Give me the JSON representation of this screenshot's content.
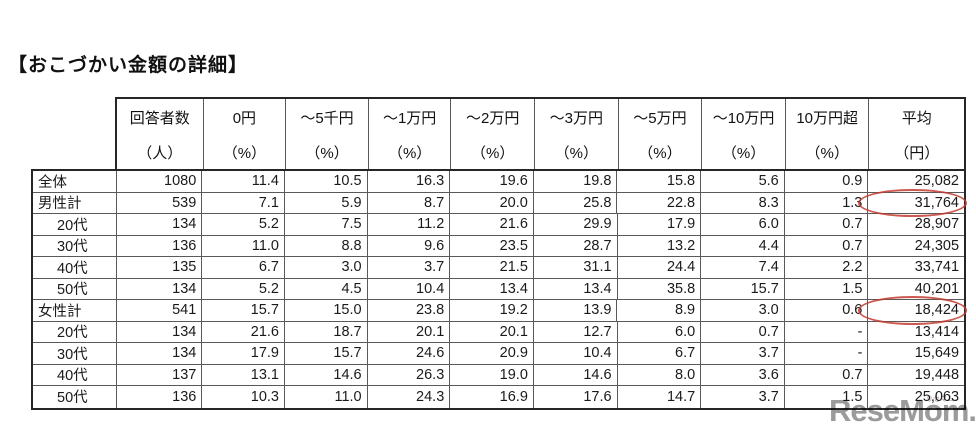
{
  "page": {
    "title": "【おこづかい金額の詳細】"
  },
  "table": {
    "columns": [
      {
        "line1": "回答者数",
        "line2": "（人）"
      },
      {
        "line1": "0円",
        "line2": "（%）"
      },
      {
        "line1": "～5千円",
        "line2": "（%）"
      },
      {
        "line1": "～1万円",
        "line2": "（%）"
      },
      {
        "line1": "～2万円",
        "line2": "（%）"
      },
      {
        "line1": "～3万円",
        "line2": "（%）"
      },
      {
        "line1": "～5万円",
        "line2": "（%）"
      },
      {
        "line1": "～10万円",
        "line2": "（%）"
      },
      {
        "line1": "10万円超",
        "line2": "（%）"
      },
      {
        "line1": "平均",
        "line2": "（円）"
      }
    ],
    "rows": [
      {
        "label": "全体",
        "indent": false,
        "circled": false,
        "values": [
          "1080",
          "11.4",
          "10.5",
          "16.3",
          "19.6",
          "19.8",
          "15.8",
          "5.6",
          "0.9",
          "25,082"
        ]
      },
      {
        "label": "男性計",
        "indent": false,
        "circled": true,
        "values": [
          "539",
          "7.1",
          "5.9",
          "8.7",
          "20.0",
          "25.8",
          "22.8",
          "8.3",
          "1.3",
          "31,764"
        ]
      },
      {
        "label": "20代",
        "indent": true,
        "circled": false,
        "values": [
          "134",
          "5.2",
          "7.5",
          "11.2",
          "21.6",
          "29.9",
          "17.9",
          "6.0",
          "0.7",
          "28,907"
        ]
      },
      {
        "label": "30代",
        "indent": true,
        "circled": false,
        "values": [
          "136",
          "11.0",
          "8.8",
          "9.6",
          "23.5",
          "28.7",
          "13.2",
          "4.4",
          "0.7",
          "24,305"
        ]
      },
      {
        "label": "40代",
        "indent": true,
        "circled": false,
        "values": [
          "135",
          "6.7",
          "3.0",
          "3.7",
          "21.5",
          "31.1",
          "24.4",
          "7.4",
          "2.2",
          "33,741"
        ]
      },
      {
        "label": "50代",
        "indent": true,
        "circled": false,
        "values": [
          "134",
          "5.2",
          "4.5",
          "10.4",
          "13.4",
          "13.4",
          "35.8",
          "15.7",
          "1.5",
          "40,201"
        ]
      },
      {
        "label": "女性計",
        "indent": false,
        "circled": true,
        "values": [
          "541",
          "15.7",
          "15.0",
          "23.8",
          "19.2",
          "13.9",
          "8.9",
          "3.0",
          "0.6",
          "18,424"
        ]
      },
      {
        "label": "20代",
        "indent": true,
        "circled": false,
        "values": [
          "134",
          "21.6",
          "18.7",
          "20.1",
          "20.1",
          "12.7",
          "6.0",
          "0.7",
          "-",
          "13,414"
        ]
      },
      {
        "label": "30代",
        "indent": true,
        "circled": false,
        "values": [
          "134",
          "17.9",
          "15.7",
          "24.6",
          "20.9",
          "10.4",
          "6.7",
          "3.7",
          "-",
          "15,649"
        ]
      },
      {
        "label": "40代",
        "indent": true,
        "circled": false,
        "values": [
          "137",
          "13.1",
          "14.6",
          "26.3",
          "19.0",
          "14.6",
          "8.0",
          "3.6",
          "0.7",
          "19,448"
        ]
      },
      {
        "label": "50代",
        "indent": true,
        "circled": false,
        "values": [
          "136",
          "10.3",
          "11.0",
          "24.3",
          "16.9",
          "17.6",
          "14.7",
          "3.7",
          "1.5",
          "25,063"
        ]
      }
    ]
  },
  "annotations": {
    "highlight_circle_color": "#c33c30",
    "circled_values": [
      "31,764",
      "18,424"
    ]
  },
  "watermark": {
    "text": "ReseMom.",
    "ruby": "リセマム",
    "color": "#9b9b9b"
  }
}
